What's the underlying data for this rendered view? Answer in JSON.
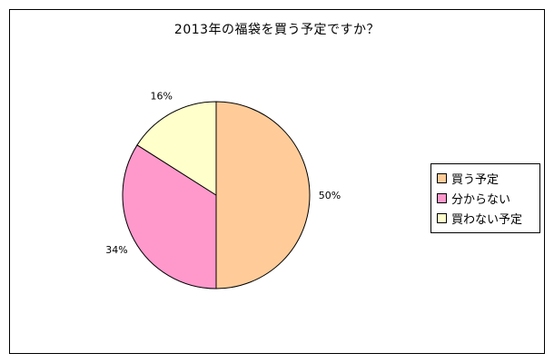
{
  "chart_data": {
    "type": "pie",
    "title": "2013年の福袋を買う予定ですか？",
    "categories": [
      "買う予定",
      "分からない",
      "買わない予定"
    ],
    "values": [
      50,
      34,
      16
    ],
    "value_labels": [
      "50%",
      "34%",
      "16%"
    ],
    "colors": [
      "#FFCC99",
      "#FF99CC",
      "#FFFFCC"
    ],
    "start_angle_deg": 0,
    "direction": "clockwise",
    "legend": {
      "placement": "right"
    }
  }
}
